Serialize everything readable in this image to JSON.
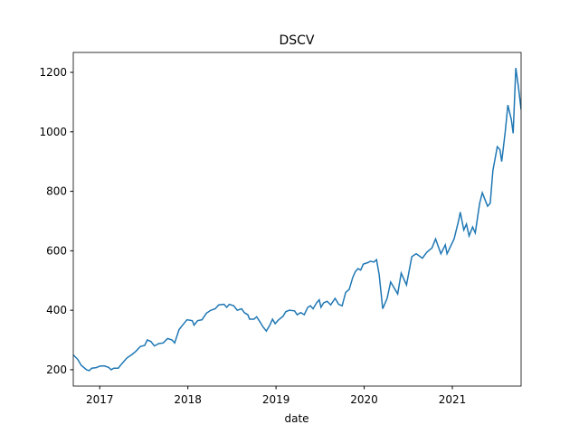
{
  "chart_data": {
    "type": "line",
    "title": "DSCV",
    "x_label": "date",
    "series": [
      {
        "color": "#1f77b4",
        "x": [
          2016.7,
          2016.75,
          2016.79,
          2016.85,
          2016.88,
          2016.91,
          2016.96,
          2017.0,
          2017.05,
          2017.1,
          2017.13,
          2017.16,
          2017.21,
          2017.25,
          2017.31,
          2017.36,
          2017.41,
          2017.46,
          2017.51,
          2017.54,
          2017.58,
          2017.62,
          2017.67,
          2017.72,
          2017.77,
          2017.82,
          2017.85,
          2017.9,
          2017.94,
          2017.99,
          2018.05,
          2018.07,
          2018.11,
          2018.16,
          2018.21,
          2018.26,
          2018.31,
          2018.35,
          2018.41,
          2018.44,
          2018.47,
          2018.52,
          2018.56,
          2018.61,
          2018.64,
          2018.68,
          2018.7,
          2018.75,
          2018.78,
          2018.82,
          2018.85,
          2018.89,
          2018.93,
          2018.96,
          2018.99,
          2019.03,
          2019.08,
          2019.11,
          2019.15,
          2019.21,
          2019.24,
          2019.28,
          2019.32,
          2019.36,
          2019.39,
          2019.42,
          2019.46,
          2019.49,
          2019.51,
          2019.54,
          2019.58,
          2019.62,
          2019.67,
          2019.71,
          2019.75,
          2019.79,
          2019.83,
          2019.87,
          2019.9,
          2019.93,
          2019.96,
          2019.99,
          2020.04,
          2020.07,
          2020.11,
          2020.14,
          2020.17,
          2020.21,
          2020.26,
          2020.3,
          2020.38,
          2020.42,
          2020.48,
          2020.54,
          2020.59,
          2020.66,
          2020.71,
          2020.77,
          2020.81,
          2020.87,
          2020.92,
          2020.94,
          2021.02,
          2021.07,
          2021.09,
          2021.13,
          2021.16,
          2021.19,
          2021.23,
          2021.26,
          2021.28,
          2021.31,
          2021.34,
          2021.4,
          2021.43,
          2021.46,
          2021.51,
          2021.54,
          2021.56,
          2021.6,
          2021.63,
          2021.67,
          2021.69,
          2021.72,
          2021.75,
          2021.78
        ],
        "values": [
          250,
          235,
          215,
          200,
          197,
          205,
          207,
          212,
          213,
          208,
          200,
          205,
          205,
          220,
          240,
          250,
          262,
          278,
          282,
          300,
          295,
          280,
          288,
          290,
          305,
          300,
          290,
          335,
          350,
          368,
          365,
          350,
          365,
          368,
          390,
          400,
          405,
          418,
          420,
          410,
          420,
          415,
          400,
          405,
          392,
          385,
          370,
          370,
          378,
          360,
          345,
          330,
          350,
          370,
          355,
          368,
          380,
          395,
          400,
          398,
          385,
          392,
          385,
          410,
          415,
          405,
          425,
          435,
          410,
          425,
          430,
          418,
          440,
          420,
          415,
          460,
          470,
          510,
          530,
          540,
          535,
          555,
          560,
          565,
          562,
          570,
          520,
          405,
          440,
          495,
          455,
          525,
          485,
          580,
          590,
          575,
          595,
          610,
          640,
          590,
          620,
          590,
          640,
          700,
          730,
          670,
          690,
          650,
          680,
          660,
          700,
          760,
          795,
          750,
          760,
          870,
          950,
          940,
          900,
          1000,
          1090,
          1040,
          995,
          1215,
          1150,
          1075
        ]
      }
    ],
    "xlim": [
      2016.7,
      2021.78
    ],
    "xticks": [
      2017,
      2018,
      2019,
      2020,
      2021
    ],
    "ylim": [
      145,
      1267
    ],
    "yticks": [
      200,
      400,
      600,
      800,
      1000,
      1200
    ]
  }
}
